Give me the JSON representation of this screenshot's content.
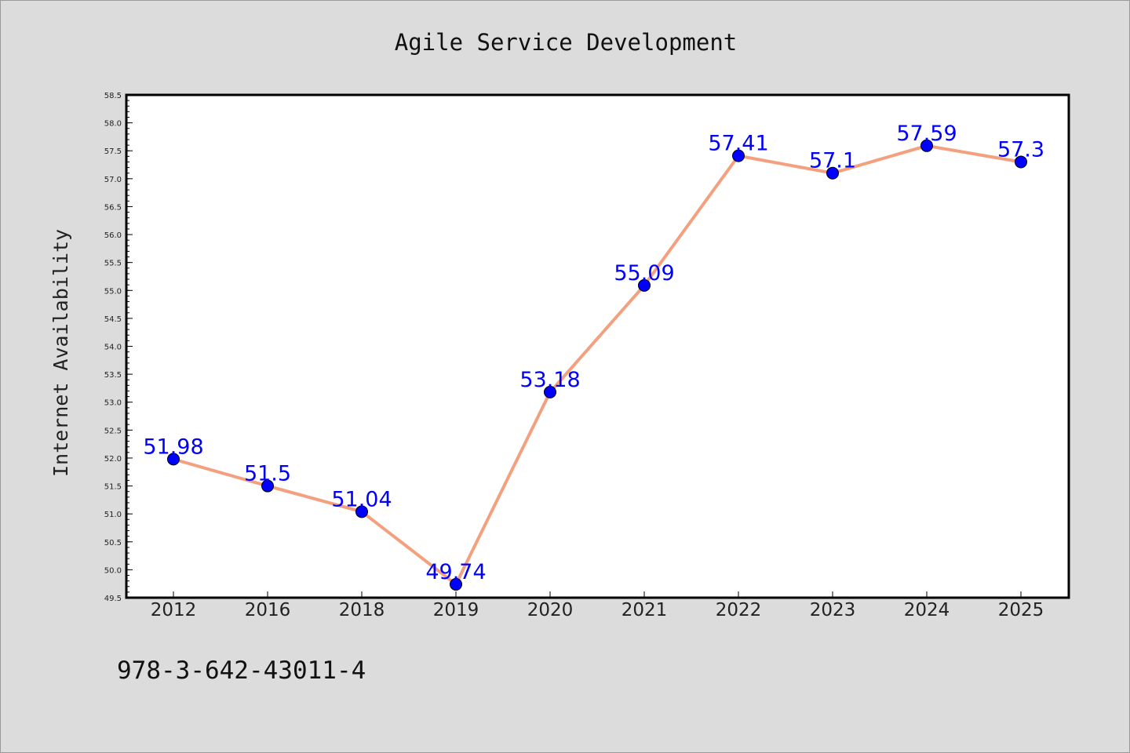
{
  "chart_data": {
    "type": "line",
    "title": "Agile Service Development",
    "xlabel": "",
    "ylabel": "Internet Availability",
    "categories": [
      "2012",
      "2016",
      "2018",
      "2019",
      "2020",
      "2021",
      "2022",
      "2023",
      "2024",
      "2025"
    ],
    "series": [
      {
        "values": [
          51.98,
          51.5,
          51.04,
          49.74,
          53.18,
          55.09,
          57.41,
          57.1,
          57.59,
          57.3
        ],
        "data_labels": [
          "51.98",
          "51.5",
          "51.04",
          "49.74",
          "53.18",
          "55.09",
          "57.41",
          "57.1",
          "57.59",
          "57.3"
        ],
        "line_color": "#f4a07e",
        "marker_color": "#0000ff"
      }
    ],
    "ylim": [
      49.5,
      58.5
    ],
    "yticks": [
      "49.5",
      "50.0",
      "50.5",
      "51.0",
      "51.5",
      "52.0",
      "52.5",
      "53.0",
      "53.5",
      "54.0",
      "54.5",
      "55.0",
      "55.5",
      "56.0",
      "56.5",
      "57.0",
      "57.5",
      "58.0",
      "58.5"
    ],
    "grid": false,
    "legend": "none",
    "colors": {
      "background": "#dcdcdc",
      "plot_background": "#ffffff",
      "axis": "#000000",
      "label": "#0000ff"
    }
  },
  "footnote": "978-3-642-43011-4"
}
